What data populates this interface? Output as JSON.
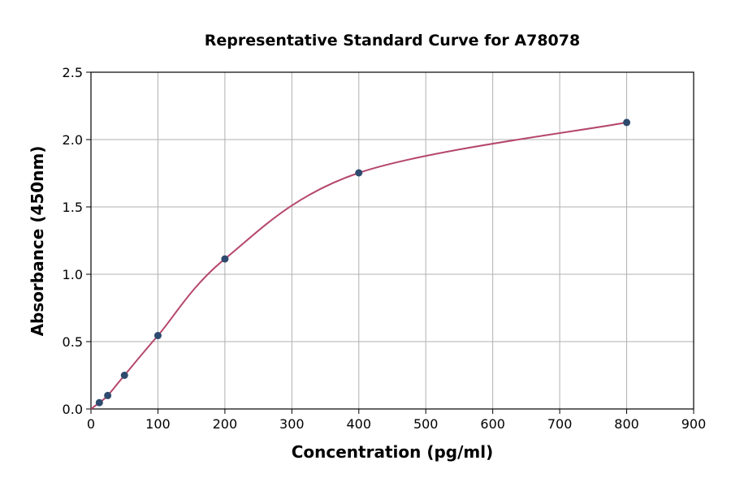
{
  "chart_data": {
    "type": "scatter",
    "title": "Representative Standard Curve for A78078",
    "xlabel": "Concentration (pg/ml)",
    "ylabel": "Absorbance (450nm)",
    "xlim": [
      0,
      900
    ],
    "ylim": [
      0,
      2.5
    ],
    "xticks": [
      "0",
      "100",
      "200",
      "300",
      "400",
      "500",
      "600",
      "700",
      "800",
      "900"
    ],
    "yticks": [
      "0.0",
      "0.5",
      "1.0",
      "1.5",
      "2.0",
      "2.5"
    ],
    "grid": true,
    "x": [
      12.5,
      25,
      50,
      100,
      200,
      400,
      800
    ],
    "y": [
      0.047,
      0.1,
      0.25,
      0.545,
      1.114,
      1.753,
      2.127
    ],
    "point_color": "#2e4a6e",
    "curve_color": "#b5476b"
  }
}
